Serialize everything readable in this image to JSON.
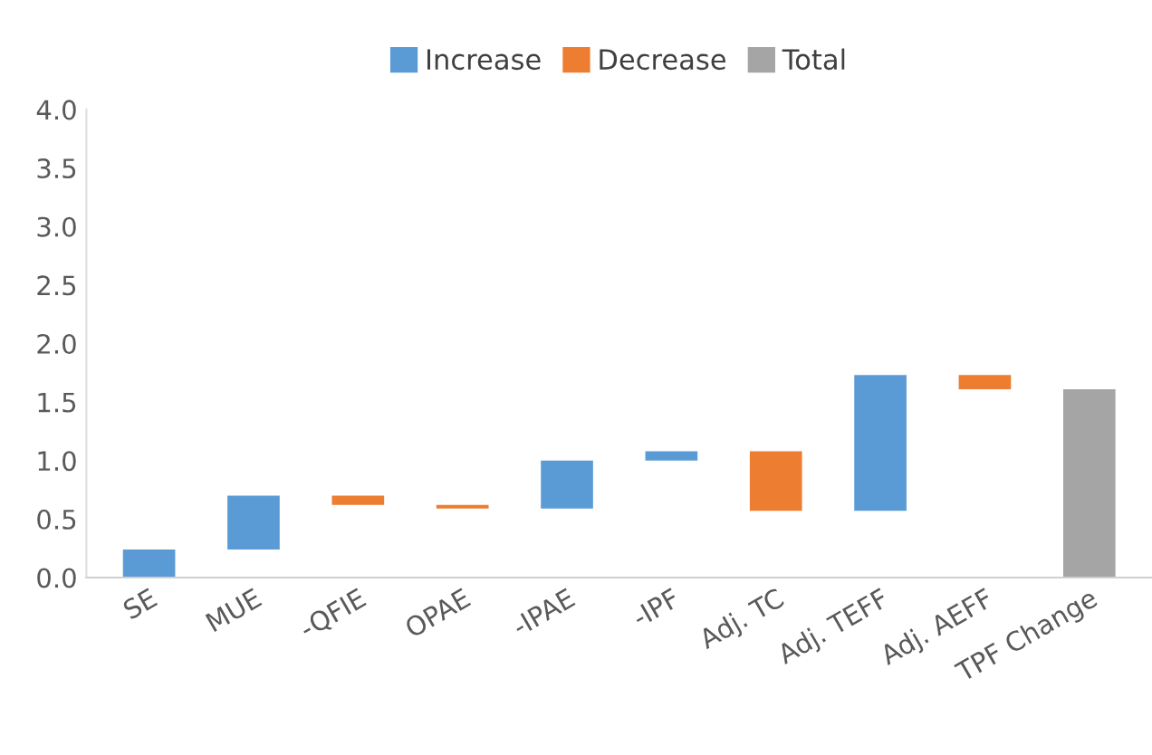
{
  "chart_data": {
    "type": "bar",
    "categories": [
      "SE",
      "MUE",
      "-QFIE",
      "OPAE",
      "-IPAE",
      "-IPF",
      "Adj. TC",
      "Adj. TEFF",
      "Adj. AEFF",
      "TPF Change"
    ],
    "series": [
      {
        "name": "Increase",
        "color": "#5b9bd5",
        "base": [
          0,
          0.24,
          null,
          null,
          0.59,
          1.0,
          null,
          0.57,
          null,
          null
        ],
        "values": [
          0.24,
          0.46,
          null,
          null,
          0.41,
          0.08,
          null,
          1.16,
          null,
          null
        ]
      },
      {
        "name": "Decrease",
        "color": "#ed7d31",
        "base": [
          null,
          null,
          0.62,
          0.59,
          null,
          null,
          0.57,
          null,
          1.61,
          null
        ],
        "values": [
          null,
          null,
          0.08,
          0.03,
          null,
          null,
          0.51,
          null,
          0.12,
          null
        ]
      },
      {
        "name": "Total",
        "color": "#a5a5a5",
        "base": [
          null,
          null,
          null,
          null,
          null,
          null,
          null,
          null,
          null,
          0
        ],
        "values": [
          null,
          null,
          null,
          null,
          null,
          null,
          null,
          null,
          null,
          1.61
        ]
      }
    ],
    "ylim": [
      0,
      4.0
    ],
    "yticks": [
      {
        "value": 0,
        "label": "0.0"
      },
      {
        "value": 0.5,
        "label": "0.5"
      },
      {
        "value": 1.0,
        "label": "1.0"
      },
      {
        "value": 1.5,
        "label": "1.5"
      },
      {
        "value": 2.0,
        "label": "2.0"
      },
      {
        "value": 2.5,
        "label": "2.5"
      },
      {
        "value": 3.0,
        "label": "3.0"
      },
      {
        "value": 3.5,
        "label": "3.5"
      },
      {
        "value": 4.0,
        "label": "4.0"
      }
    ],
    "legend": "top",
    "grid": false
  }
}
